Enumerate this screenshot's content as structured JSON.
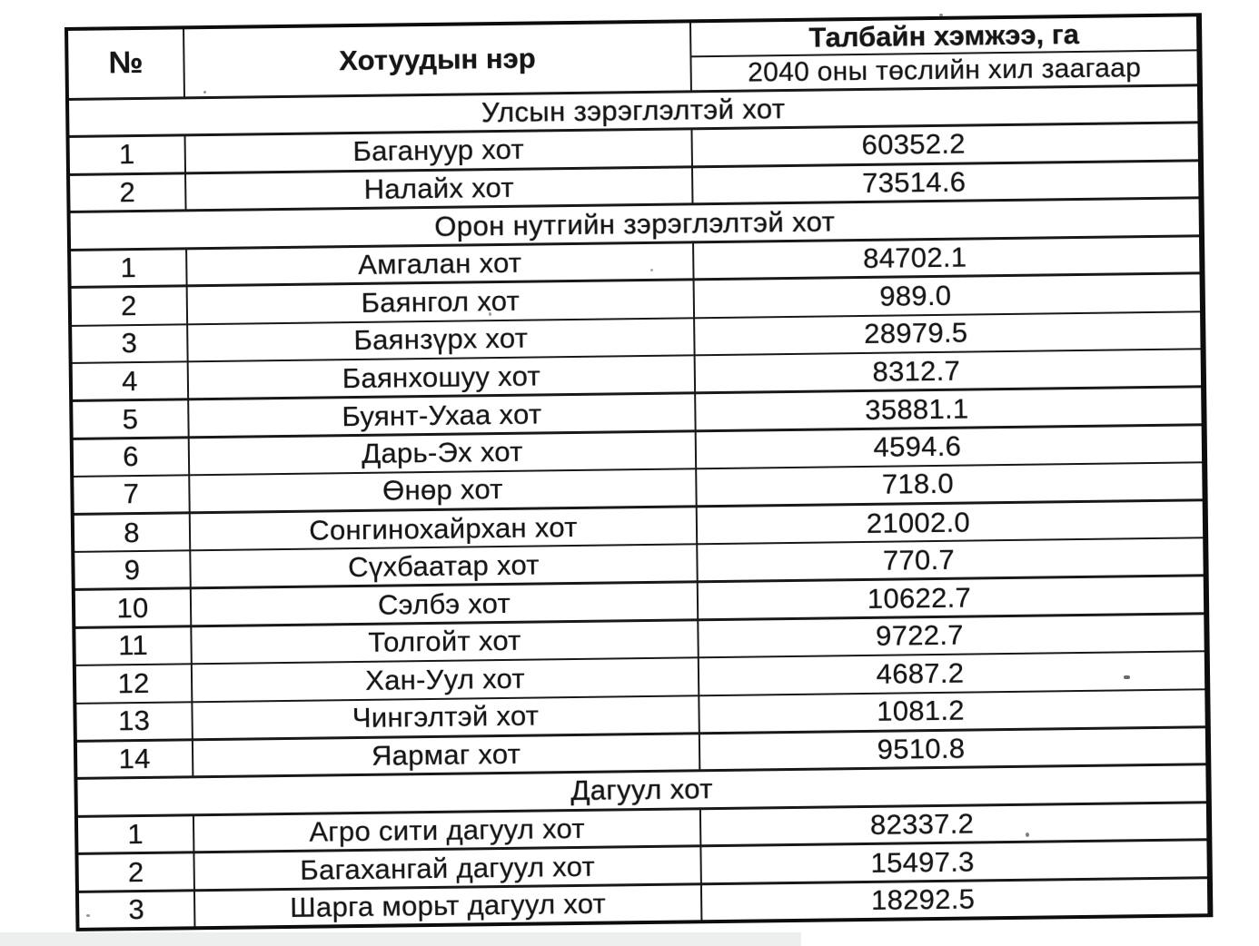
{
  "table": {
    "header": {
      "col_no": "№",
      "col_name": "Хотуудын нэр",
      "col_area_title": "Талбайн хэмжээ, га",
      "col_area_sub": "2040 оны төслийн хил заагаар"
    },
    "sections": [
      {
        "title": "Улсын зэрэглэлтэй хот",
        "rows": [
          {
            "no": "1",
            "name": "Багануур хот",
            "area": "60352.2"
          },
          {
            "no": "2",
            "name": "Налайх хот",
            "area": "73514.6"
          }
        ]
      },
      {
        "title": "Орон нутгийн зэрэглэлтэй хот",
        "rows": [
          {
            "no": "1",
            "name": "Амгалан хот",
            "area": "84702.1"
          },
          {
            "no": "2",
            "name": "Баянгол хот",
            "area": "989.0"
          },
          {
            "no": "3",
            "name": "Баянзүрх хот",
            "area": "28979.5"
          },
          {
            "no": "4",
            "name": "Баянхошуу хот",
            "area": "8312.7"
          },
          {
            "no": "5",
            "name": "Буянт-Ухаа хот",
            "area": "35881.1"
          },
          {
            "no": "6",
            "name": "Дарь-Эх хот",
            "area": "4594.6"
          },
          {
            "no": "7",
            "name": "Өнөр хот",
            "area": "718.0"
          },
          {
            "no": "8",
            "name": "Сонгинохайрхан хот",
            "area": "21002.0"
          },
          {
            "no": "9",
            "name": "Сүхбаатар хот",
            "area": "770.7"
          },
          {
            "no": "10",
            "name": "Сэлбэ хот",
            "area": "10622.7"
          },
          {
            "no": "11",
            "name": "Толгойт хот",
            "area": "9722.7"
          },
          {
            "no": "12",
            "name": "Хан-Уул хот",
            "area": "4687.2"
          },
          {
            "no": "13",
            "name": "Чингэлтэй хот",
            "area": "1081.2"
          },
          {
            "no": "14",
            "name": "Яармаг хот",
            "area": "9510.8"
          }
        ]
      },
      {
        "title": "Дагуул хот",
        "rows": [
          {
            "no": "1",
            "name": "Агро сити дагуул хот",
            "area": "82337.2"
          },
          {
            "no": "2",
            "name": "Багахангай дагуул хот",
            "area": "15497.3"
          },
          {
            "no": "3",
            "name": "Шарга морьт дагуул хот",
            "area": "18292.5"
          }
        ]
      }
    ]
  }
}
